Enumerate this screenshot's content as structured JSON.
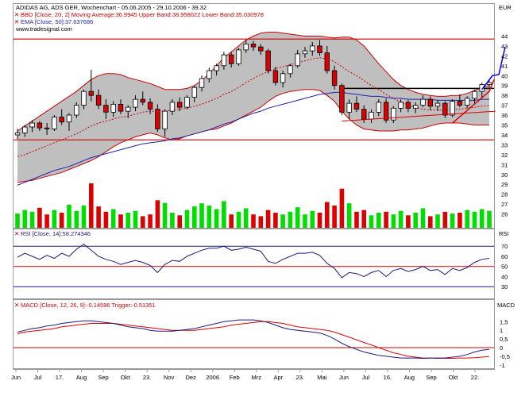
{
  "header": {
    "title": "ADIDAS AG, ADS GER, Wochenchart - 05.06.2005 - 29.10.2006 - 39.32",
    "bbd_legend": "BBD [Close, 20, 2] Moving Average:36.9945 Upper Band:38.958022 Lower Band:35.030978",
    "ema_legend": "EMA [Close, 50]:37.637686",
    "site": "www.tradesignal.com",
    "currency": "EUR"
  },
  "panels": {
    "rsi_legend": "RSI [Close, 14]:58.274346",
    "rsi_axis_label": "RSI",
    "macd_legend": "MACD [Close, 12, 26, 9]:-0.14596 Trigger:-0.51351",
    "macd_axis_label": "MACD"
  },
  "colors": {
    "up": "#00dd00",
    "down": "#dd0000",
    "band_fill": "#bfbfbf",
    "band_line": "#cc0000",
    "ema": "#2222aa",
    "ma": "#cc0000",
    "rsi": "#1a1a7a",
    "macd": "#1a1a7a",
    "trigger": "#dd0000",
    "level_line": "#cc0000",
    "frame": "#999999"
  },
  "chart_data": {
    "type": "candlestick",
    "x_labels": [
      "Jun",
      "Jul",
      "17.",
      "Aug",
      "Sep",
      "Okt",
      "23.",
      "Nov",
      "Dez",
      "2006",
      "Feb",
      "Mrz",
      "Apr",
      "23.",
      "Mai",
      "Jun",
      "Jul",
      "16.",
      "Aug",
      "Sep",
      "Okt",
      "22."
    ],
    "price_ylim": [
      25,
      45
    ],
    "price_ticks": [
      26,
      27,
      28,
      29,
      30,
      31,
      32,
      33,
      34,
      35,
      36,
      37,
      38,
      39,
      40,
      41,
      42,
      43,
      44
    ],
    "rsi_ylim": [
      20,
      78
    ],
    "rsi_ticks": [
      30,
      40,
      50,
      60,
      70
    ],
    "macd_ylim": [
      -1.1,
      2.2
    ],
    "macd_tick_labels": [
      "1,5",
      "1",
      "0,5",
      "0",
      "-0,5",
      "-1"
    ],
    "macd_tick_values": [
      1.5,
      1,
      0.5,
      0,
      -0.5,
      -1
    ],
    "horizontal_levels": [
      {
        "value": 43.7,
        "color": "#cc0000"
      },
      {
        "value": 33.5,
        "color": "#cc0000"
      },
      {
        "value": 38.7,
        "color": "#000000",
        "from_week": 44
      }
    ],
    "candles": [
      [
        34.0,
        34.6,
        33.6,
        34.2
      ],
      [
        34.2,
        35.0,
        33.8,
        34.8
      ],
      [
        34.8,
        35.5,
        34.3,
        35.2
      ],
      [
        35.2,
        35.4,
        34.4,
        34.7
      ],
      [
        34.7,
        35.2,
        34.0,
        34.6
      ],
      [
        34.6,
        36.0,
        34.4,
        35.8
      ],
      [
        35.8,
        36.6,
        35.0,
        35.3
      ],
      [
        35.3,
        36.2,
        34.4,
        36.0
      ],
      [
        36.0,
        37.3,
        35.7,
        37.0
      ],
      [
        37.0,
        38.6,
        36.6,
        38.4
      ],
      [
        38.4,
        40.6,
        37.4,
        38.0
      ],
      [
        38.0,
        38.6,
        36.6,
        37.0
      ],
      [
        37.0,
        37.6,
        35.6,
        36.3
      ],
      [
        36.3,
        37.4,
        35.8,
        37.1
      ],
      [
        37.1,
        37.6,
        36.1,
        36.4
      ],
      [
        36.4,
        37.0,
        35.7,
        36.8
      ],
      [
        36.8,
        38.0,
        36.4,
        37.6
      ],
      [
        37.6,
        38.4,
        37.0,
        37.3
      ],
      [
        37.3,
        37.7,
        36.1,
        36.6
      ],
      [
        36.6,
        37.1,
        34.3,
        34.6
      ],
      [
        34.6,
        36.6,
        33.8,
        36.4
      ],
      [
        36.4,
        37.6,
        36.0,
        37.3
      ],
      [
        37.3,
        37.8,
        36.4,
        36.8
      ],
      [
        36.8,
        38.0,
        36.6,
        37.8
      ],
      [
        37.8,
        39.0,
        37.3,
        38.8
      ],
      [
        38.8,
        40.0,
        38.4,
        39.7
      ],
      [
        39.7,
        40.8,
        39.3,
        40.5
      ],
      [
        40.5,
        41.2,
        40.0,
        41.0
      ],
      [
        41.0,
        42.4,
        40.6,
        42.1
      ],
      [
        42.1,
        42.4,
        40.8,
        41.2
      ],
      [
        41.2,
        42.8,
        41.0,
        42.6
      ],
      [
        42.6,
        43.6,
        42.3,
        43.2
      ],
      [
        43.2,
        43.5,
        42.5,
        42.9
      ],
      [
        42.9,
        43.2,
        42.1,
        42.5
      ],
      [
        42.5,
        42.7,
        40.2,
        40.5
      ],
      [
        40.5,
        40.9,
        39.0,
        39.3
      ],
      [
        39.3,
        40.5,
        38.8,
        40.2
      ],
      [
        40.2,
        41.2,
        39.8,
        41.0
      ],
      [
        41.0,
        42.6,
        40.8,
        42.2
      ],
      [
        42.2,
        42.9,
        41.8,
        42.5
      ],
      [
        42.5,
        43.4,
        42.0,
        43.0
      ],
      [
        43.0,
        43.6,
        42.0,
        42.3
      ],
      [
        42.3,
        43.0,
        40.2,
        40.5
      ],
      [
        40.5,
        41.0,
        38.6,
        39.0
      ],
      [
        39.0,
        39.2,
        36.0,
        36.3
      ],
      [
        36.3,
        37.6,
        35.6,
        37.2
      ],
      [
        37.2,
        37.9,
        36.3,
        36.6
      ],
      [
        36.6,
        37.0,
        35.2,
        35.6
      ],
      [
        35.6,
        36.6,
        35.2,
        36.3
      ],
      [
        36.3,
        37.6,
        35.9,
        37.3
      ],
      [
        37.3,
        37.7,
        35.2,
        35.5
      ],
      [
        35.5,
        36.9,
        35.2,
        36.7
      ],
      [
        36.7,
        37.6,
        36.3,
        37.3
      ],
      [
        37.3,
        37.5,
        36.3,
        36.7
      ],
      [
        36.7,
        37.3,
        36.2,
        37.0
      ],
      [
        37.0,
        38.0,
        36.8,
        37.6
      ],
      [
        37.6,
        37.9,
        36.5,
        36.9
      ],
      [
        36.9,
        37.5,
        36.4,
        37.2
      ],
      [
        37.2,
        37.4,
        35.7,
        36.0
      ],
      [
        36.0,
        37.6,
        35.8,
        37.4
      ],
      [
        37.4,
        38.1,
        36.8,
        37.0
      ],
      [
        37.0,
        37.9,
        36.7,
        37.7
      ],
      [
        37.7,
        38.6,
        37.2,
        38.4
      ],
      [
        38.4,
        39.3,
        37.8,
        39.1
      ],
      [
        39.1,
        39.6,
        38.7,
        39.3
      ]
    ],
    "volume": [
      0.32,
      0.4,
      0.36,
      0.45,
      0.3,
      0.4,
      0.34,
      0.52,
      0.38,
      0.5,
      1.0,
      0.48,
      0.36,
      0.42,
      0.3,
      0.34,
      0.38,
      0.26,
      0.3,
      0.62,
      0.56,
      0.34,
      0.28,
      0.4,
      0.48,
      0.55,
      0.5,
      0.42,
      0.6,
      0.3,
      0.36,
      0.44,
      0.3,
      0.26,
      0.4,
      0.34,
      0.3,
      0.36,
      0.46,
      0.3,
      0.38,
      0.34,
      0.58,
      0.5,
      0.88,
      0.55,
      0.36,
      0.4,
      0.28,
      0.34,
      0.36,
      0.3,
      0.38,
      0.28,
      0.34,
      0.44,
      0.26,
      0.3,
      0.36,
      0.32,
      0.34,
      0.4,
      0.36,
      0.42,
      0.38
    ],
    "ema50": [
      28.9,
      29.2,
      29.5,
      29.8,
      30.1,
      30.4,
      30.6,
      30.8,
      31.1,
      31.4,
      31.7,
      31.9,
      32.1,
      32.3,
      32.5,
      32.7,
      32.9,
      33.1,
      33.2,
      33.3,
      33.4,
      33.6,
      33.7,
      33.9,
      34.1,
      34.3,
      34.5,
      34.8,
      35.1,
      35.3,
      35.6,
      35.9,
      36.2,
      36.4,
      36.7,
      36.9,
      37.1,
      37.3,
      37.5,
      37.7,
      37.9,
      38.1,
      38.2,
      38.3,
      38.3,
      38.2,
      38.1,
      38.0,
      37.9,
      37.9,
      37.8,
      37.7,
      37.7,
      37.6,
      37.6,
      37.6,
      37.6,
      37.5,
      37.5,
      37.5,
      37.5,
      37.5,
      37.5,
      37.6,
      37.6
    ],
    "ma20": [
      31.8,
      32.0,
      32.3,
      32.6,
      32.9,
      33.2,
      33.5,
      33.8,
      34.1,
      34.5,
      34.9,
      35.2,
      35.4,
      35.6,
      35.8,
      35.9,
      36.1,
      36.3,
      36.4,
      36.4,
      36.4,
      36.5,
      36.6,
      36.7,
      36.9,
      37.1,
      37.4,
      37.7,
      38.1,
      38.4,
      38.8,
      39.3,
      39.7,
      40.1,
      40.4,
      40.7,
      40.9,
      41.1,
      41.3,
      41.5,
      41.7,
      41.8,
      41.7,
      41.4,
      40.9,
      40.4,
      40.0,
      39.5,
      39.0,
      38.6,
      38.1,
      37.7,
      37.3,
      37.0,
      36.8,
      36.6,
      36.5,
      36.5,
      36.5,
      36.6,
      36.6,
      36.7,
      36.8,
      36.9,
      37.0
    ],
    "upper_band": [
      34.4,
      34.9,
      35.4,
      35.9,
      36.4,
      36.9,
      37.4,
      37.9,
      38.4,
      39.0,
      39.6,
      40.0,
      40.2,
      40.2,
      40.1,
      39.8,
      39.6,
      39.4,
      39.2,
      38.9,
      38.6,
      38.6,
      38.6,
      38.7,
      39.0,
      39.5,
      40.2,
      41.0,
      41.8,
      42.4,
      43.0,
      43.6,
      44.0,
      44.3,
      44.4,
      44.4,
      44.3,
      44.2,
      44.1,
      44.0,
      44.0,
      44.0,
      43.9,
      43.8,
      43.9,
      43.9,
      43.6,
      43.0,
      42.1,
      41.2,
      40.4,
      39.6,
      39.0,
      38.6,
      38.3,
      38.1,
      38.0,
      37.9,
      37.9,
      38.0,
      38.0,
      38.2,
      38.5,
      38.8,
      39.0
    ],
    "lower_band": [
      29.2,
      29.3,
      29.4,
      29.6,
      29.8,
      30.0,
      30.2,
      30.5,
      30.8,
      31.1,
      31.4,
      31.8,
      32.3,
      32.8,
      33.2,
      33.5,
      33.8,
      34.0,
      34.2,
      34.0,
      33.7,
      33.5,
      33.6,
      33.9,
      34.1,
      34.3,
      34.5,
      34.6,
      34.9,
      35.2,
      35.6,
      36.0,
      36.4,
      36.8,
      37.4,
      37.9,
      38.2,
      38.4,
      38.5,
      38.6,
      38.6,
      38.5,
      38.0,
      37.4,
      36.4,
      35.6,
      35.0,
      34.6,
      34.5,
      34.4,
      34.4,
      34.4,
      34.5,
      34.5,
      34.6,
      34.7,
      34.9,
      35.1,
      35.2,
      35.2,
      35.2,
      35.1,
      35.0,
      35.0,
      35.0
    ],
    "rsi": [
      59,
      63,
      60,
      57,
      61,
      58,
      63,
      60,
      67,
      72,
      66,
      60,
      57,
      55,
      52,
      54,
      56,
      54,
      51,
      44,
      52,
      56,
      55,
      60,
      63,
      66,
      68,
      68,
      70,
      66,
      67,
      69,
      67,
      65,
      55,
      53,
      57,
      60,
      63,
      63,
      64,
      61,
      53,
      48,
      39,
      44,
      43,
      40,
      44,
      46,
      40,
      46,
      48,
      45,
      47,
      50,
      46,
      47,
      42,
      48,
      46,
      49,
      54,
      57,
      58
    ],
    "macd": [
      0.9,
      1.0,
      1.1,
      1.15,
      1.25,
      1.3,
      1.4,
      1.45,
      1.5,
      1.55,
      1.55,
      1.5,
      1.45,
      1.4,
      1.3,
      1.2,
      1.15,
      1.1,
      1.0,
      0.95,
      0.95,
      0.95,
      1.0,
      1.05,
      1.1,
      1.2,
      1.3,
      1.4,
      1.5,
      1.55,
      1.6,
      1.6,
      1.6,
      1.55,
      1.45,
      1.3,
      1.15,
      1.05,
      1.0,
      0.95,
      0.9,
      0.85,
      0.7,
      0.5,
      0.25,
      0.05,
      -0.1,
      -0.25,
      -0.35,
      -0.45,
      -0.5,
      -0.55,
      -0.6,
      -0.6,
      -0.6,
      -0.62,
      -0.6,
      -0.6,
      -0.6,
      -0.55,
      -0.5,
      -0.4,
      -0.25,
      -0.15,
      -0.1
    ],
    "trigger": [
      0.8,
      0.9,
      0.95,
      1.0,
      1.05,
      1.1,
      1.2,
      1.25,
      1.3,
      1.35,
      1.4,
      1.4,
      1.4,
      1.4,
      1.35,
      1.3,
      1.25,
      1.2,
      1.15,
      1.1,
      1.05,
      1.0,
      1.0,
      1.0,
      1.0,
      1.05,
      1.1,
      1.15,
      1.2,
      1.3,
      1.35,
      1.4,
      1.45,
      1.5,
      1.5,
      1.45,
      1.4,
      1.3,
      1.2,
      1.15,
      1.1,
      1.05,
      1.0,
      0.9,
      0.75,
      0.6,
      0.45,
      0.3,
      0.15,
      0.0,
      -0.15,
      -0.3,
      -0.4,
      -0.5,
      -0.55,
      -0.6,
      -0.6,
      -0.62,
      -0.62,
      -0.62,
      -0.6,
      -0.6,
      -0.58,
      -0.55,
      -0.51
    ]
  }
}
